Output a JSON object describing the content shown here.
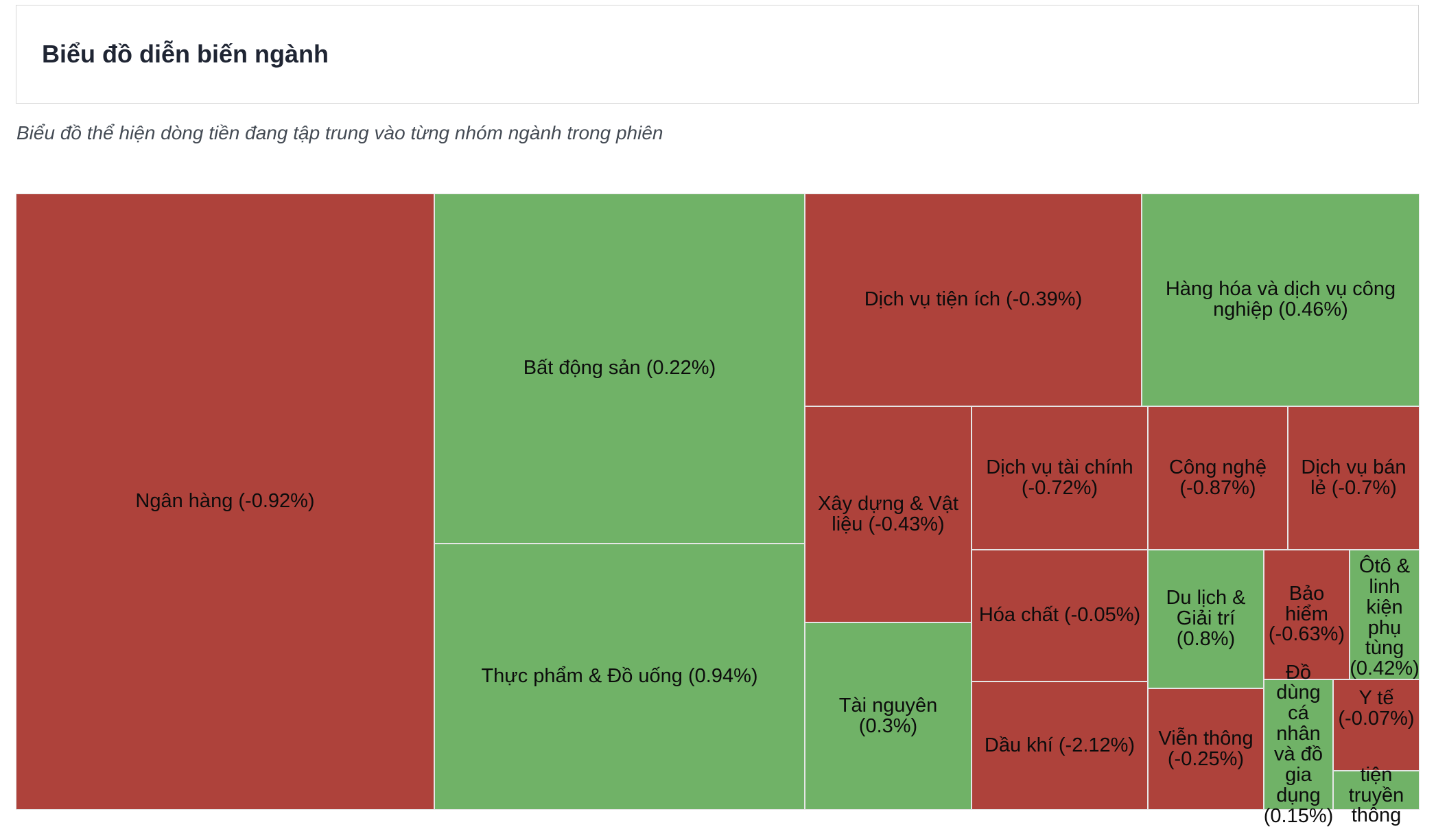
{
  "header": {
    "title": "Biểu đồ diễn biến ngành"
  },
  "subtitle": "Biểu đồ thể hiện dòng tiền đang tập trung vào từng nhóm ngành trong phiên",
  "colors": {
    "negative": "#ae423b",
    "positive": "#70b267",
    "border": "#e6e6e6"
  },
  "chart_data": {
    "type": "treemap",
    "title": "Biểu đồ diễn biến ngành",
    "items": [
      {
        "key": "ngan-hang",
        "name": "Ngân hàng",
        "change": -0.92,
        "label": "Ngân hàng (-0.92%)"
      },
      {
        "key": "bat-dong-san",
        "name": "Bất động sản",
        "change": 0.22,
        "label": "Bất động sản (0.22%)"
      },
      {
        "key": "thuc-pham-do-uong",
        "name": "Thực phẩm & Đồ uống",
        "change": 0.94,
        "label": "Thực phẩm & Đồ uống (0.94%)"
      },
      {
        "key": "dich-vu-tien-ich",
        "name": "Dịch vụ tiện ích",
        "change": -0.39,
        "label": "Dịch vụ tiện ích (-0.39%)"
      },
      {
        "key": "hang-hoa-dich-vu-cong-nghiep",
        "name": "Hàng hóa và dịch vụ công nghiệp",
        "change": 0.46,
        "label": "Hàng hóa và dịch vụ công nghiệp (0.46%)"
      },
      {
        "key": "xay-dung-vat-lieu",
        "name": "Xây dựng & Vật liệu",
        "change": -0.43,
        "label": "Xây dựng & Vật liệu (-0.43%)"
      },
      {
        "key": "tai-nguyen",
        "name": "Tài nguyên",
        "change": 0.3,
        "label": "Tài nguyên (0.3%)"
      },
      {
        "key": "dich-vu-tai-chinh",
        "name": "Dịch vụ tài chính",
        "change": -0.72,
        "label": "Dịch vụ tài chính (-0.72%)"
      },
      {
        "key": "hoa-chat",
        "name": "Hóa chất",
        "change": -0.05,
        "label": "Hóa chất (-0.05%)"
      },
      {
        "key": "dau-khi",
        "name": "Dầu khí",
        "change": -2.12,
        "label": "Dầu khí (-2.12%)"
      },
      {
        "key": "cong-nghe",
        "name": "Công nghệ",
        "change": -0.87,
        "label": "Công nghệ (-0.87%)"
      },
      {
        "key": "dich-vu-ban-le",
        "name": "Dịch vụ bán lẻ",
        "change": -0.7,
        "label": "Dịch vụ bán lẻ (-0.7%)"
      },
      {
        "key": "du-lich-giai-tri",
        "name": "Du lịch & Giải trí",
        "change": 0.8,
        "label": "Du lịch & Giải trí (0.8%)"
      },
      {
        "key": "bao-hiem",
        "name": "Bảo hiểm",
        "change": -0.63,
        "label": "Bảo hiểm (-0.63%)"
      },
      {
        "key": "oto-linh-kien",
        "name": "Ôtô & linh kiện phụ tùng",
        "change": 0.42,
        "label": "Ôtô & linh kiện phụ tùng (0.42%)"
      },
      {
        "key": "vien-thong",
        "name": "Viễn thông",
        "change": -0.25,
        "label": "Viễn thông (-0.25%)"
      },
      {
        "key": "do-dung-ca-nhan",
        "name": "Đồ dùng cá nhân và đồ gia dụng",
        "change": 0.15,
        "label": "Đồ dùng cá nhân và đồ gia dụng (0.15%)"
      },
      {
        "key": "y-te",
        "name": "Y tế",
        "change": -0.07,
        "label": "Y tế (-0.07%)"
      },
      {
        "key": "phuong-tien-truyen-thong",
        "name": "tiện truyền thông",
        "change": null,
        "label": "tiện truyền thông"
      }
    ]
  }
}
